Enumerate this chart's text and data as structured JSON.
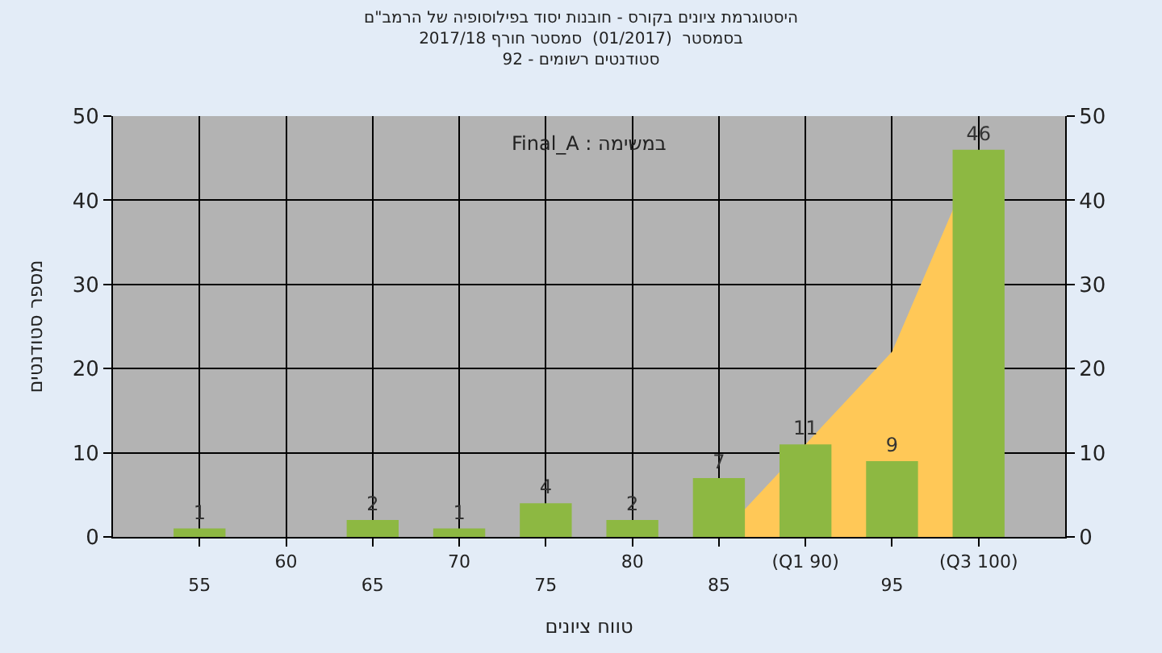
{
  "chart_data": {
    "type": "bar",
    "title": "היסטוגרמת ציונים בקורס - חובנות יסוד בפילוסופיה של הרמב\"ם\nבסמסטר  (01/2017)  סמסטר חורף 2017/18\nסטודנטים רשומים - 92",
    "xlabel": "טווח ציונים",
    "ylabel": "מספר סטודנטים",
    "annotations": [
      "Final_A : במשימה"
    ],
    "categories": [
      "55",
      "60",
      "65",
      "70",
      "75",
      "80",
      "85",
      "(Q1 90)",
      "95",
      "(Q3 100)"
    ],
    "series": [
      {
        "type": "area",
        "color": "#ffc857",
        "values": [
          null,
          null,
          null,
          null,
          null,
          null,
          0,
          11,
          22,
          46
        ]
      },
      {
        "color": "#8db842",
        "values": [
          1,
          0,
          2,
          1,
          4,
          2,
          7,
          11,
          9,
          46
        ],
        "value_labels": [
          "1",
          null,
          "2",
          "1",
          "4",
          "2",
          "7",
          "11",
          "9",
          "46"
        ]
      }
    ],
    "ylim": [
      0,
      50
    ],
    "yticks": [
      0,
      10,
      20,
      30,
      40,
      50
    ],
    "y2lim": [
      0,
      50
    ],
    "y2ticks": [
      0,
      10,
      20,
      30,
      40,
      50
    ],
    "grid": true
  }
}
